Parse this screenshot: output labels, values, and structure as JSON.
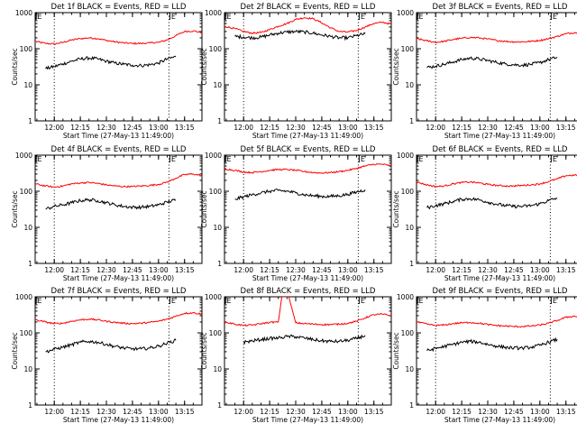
{
  "colors": {
    "events": "#000000",
    "lld": "#ff0000",
    "axis": "#000000"
  },
  "shared": {
    "xlabel": "Start Time (27-May-13 11:49:00)",
    "ylabel": "Counts/sec",
    "x_tick_labels": [
      "12:00",
      "12:15",
      "12:30",
      "12:45",
      "13:00",
      "13:15"
    ],
    "y_tick_labels": [
      "1",
      "10",
      "100",
      "1000"
    ],
    "flag_label": "E"
  },
  "chart_data": [
    {
      "type": "line",
      "title": "Det 1f BLACK = Events, RED = LLD",
      "yscale": "log",
      "ylim": [
        1,
        1000
      ],
      "xlim": [
        "11:49",
        "13:25"
      ],
      "dotted_lines_at": [
        "12:00",
        "13:06"
      ],
      "flag_at": [
        "11:49",
        "13:06"
      ],
      "x": [
        "11:49",
        "11:55",
        "12:00",
        "12:05",
        "12:10",
        "12:15",
        "12:20",
        "12:25",
        "12:30",
        "12:35",
        "12:40",
        "12:45",
        "12:50",
        "12:55",
        "13:00",
        "13:05",
        "13:10",
        "13:15",
        "13:20",
        "13:25"
      ],
      "series": [
        {
          "name": "LLD",
          "values": [
            160,
            140,
            135,
            150,
            175,
            190,
            200,
            190,
            170,
            155,
            145,
            140,
            140,
            145,
            150,
            175,
            230,
            300,
            310,
            280
          ]
        },
        {
          "name": "Events",
          "values": [
            null,
            28,
            32,
            38,
            45,
            52,
            55,
            52,
            45,
            40,
            37,
            35,
            34,
            36,
            40,
            52,
            60,
            null,
            null,
            null
          ]
        }
      ]
    },
    {
      "type": "line",
      "title": "Det 2f BLACK = Events, RED = LLD",
      "yscale": "log",
      "ylim": [
        1,
        1000
      ],
      "xlim": [
        "11:49",
        "13:25"
      ],
      "dotted_lines_at": [
        "12:00",
        "13:06"
      ],
      "flag_at": [
        "11:49",
        "13:06"
      ],
      "x": [
        "11:49",
        "11:55",
        "12:00",
        "12:05",
        "12:10",
        "12:15",
        "12:20",
        "12:25",
        "12:30",
        "12:35",
        "12:40",
        "12:45",
        "12:50",
        "12:55",
        "13:00",
        "13:05",
        "13:10",
        "13:15",
        "13:20",
        "13:25"
      ],
      "series": [
        {
          "name": "LLD",
          "values": [
            420,
            360,
            300,
            270,
            280,
            340,
            420,
            500,
            650,
            720,
            680,
            520,
            380,
            300,
            290,
            320,
            400,
            500,
            540,
            480
          ]
        },
        {
          "name": "Events",
          "values": [
            null,
            220,
            210,
            200,
            210,
            240,
            270,
            290,
            300,
            290,
            270,
            240,
            220,
            200,
            200,
            230,
            260,
            null,
            null,
            null
          ]
        }
      ]
    },
    {
      "type": "line",
      "title": "Det 3f BLACK = Events, RED = LLD",
      "yscale": "log",
      "ylim": [
        1,
        1000
      ],
      "xlim": [
        "11:49",
        "13:25"
      ],
      "dotted_lines_at": [
        "12:00",
        "13:06"
      ],
      "flag_at": [
        "11:49",
        "13:06"
      ],
      "x": [
        "11:49",
        "11:55",
        "12:00",
        "12:05",
        "12:10",
        "12:15",
        "12:20",
        "12:25",
        "12:30",
        "12:35",
        "12:40",
        "12:45",
        "12:50",
        "12:55",
        "13:00",
        "13:05",
        "13:10",
        "13:15",
        "13:20",
        "13:25"
      ],
      "series": [
        {
          "name": "LLD",
          "values": [
            190,
            165,
            150,
            160,
            180,
            195,
            205,
            200,
            185,
            170,
            160,
            155,
            155,
            160,
            170,
            190,
            220,
            260,
            280,
            260
          ]
        },
        {
          "name": "Events",
          "values": [
            null,
            30,
            33,
            37,
            43,
            50,
            55,
            52,
            47,
            42,
            38,
            36,
            35,
            37,
            41,
            50,
            58,
            null,
            null,
            null
          ]
        }
      ]
    },
    {
      "type": "line",
      "title": "Det 4f BLACK = Events, RED = LLD",
      "yscale": "log",
      "ylim": [
        1,
        1000
      ],
      "xlim": [
        "11:49",
        "13:25"
      ],
      "dotted_lines_at": [
        "12:00",
        "13:06"
      ],
      "flag_at": [
        "11:49",
        "13:06"
      ],
      "x": [
        "11:49",
        "11:55",
        "12:00",
        "12:05",
        "12:10",
        "12:15",
        "12:20",
        "12:25",
        "12:30",
        "12:35",
        "12:40",
        "12:45",
        "12:50",
        "12:55",
        "13:00",
        "13:05",
        "13:10",
        "13:15",
        "13:20",
        "13:25"
      ],
      "series": [
        {
          "name": "LLD",
          "values": [
            160,
            140,
            130,
            140,
            160,
            170,
            175,
            165,
            150,
            140,
            135,
            135,
            140,
            145,
            155,
            180,
            230,
            290,
            300,
            270
          ]
        },
        {
          "name": "Events",
          "values": [
            null,
            32,
            38,
            42,
            48,
            55,
            58,
            55,
            48,
            42,
            38,
            36,
            36,
            38,
            42,
            50,
            58,
            null,
            null,
            null
          ]
        }
      ]
    },
    {
      "type": "line",
      "title": "Det 5f BLACK = Events, RED = LLD",
      "yscale": "log",
      "ylim": [
        1,
        1000
      ],
      "xlim": [
        "11:49",
        "13:25"
      ],
      "dotted_lines_at": [
        "12:00",
        "13:06"
      ],
      "flag_at": [
        "11:49",
        "13:06"
      ],
      "x": [
        "11:49",
        "11:55",
        "12:00",
        "12:05",
        "12:10",
        "12:15",
        "12:20",
        "12:25",
        "12:30",
        "12:35",
        "12:40",
        "12:45",
        "12:50",
        "12:55",
        "13:00",
        "13:05",
        "13:10",
        "13:15",
        "13:20",
        "13:25"
      ],
      "series": [
        {
          "name": "LLD",
          "values": [
            420,
            380,
            340,
            330,
            350,
            380,
            400,
            400,
            380,
            350,
            330,
            320,
            330,
            350,
            380,
            430,
            500,
            560,
            560,
            500
          ]
        },
        {
          "name": "Events",
          "values": [
            null,
            60,
            70,
            80,
            90,
            100,
            105,
            100,
            90,
            80,
            75,
            72,
            72,
            75,
            82,
            95,
            110,
            null,
            null,
            null
          ]
        }
      ]
    },
    {
      "type": "line",
      "title": "Det 6f BLACK = Events, RED = LLD",
      "yscale": "log",
      "ylim": [
        1,
        1000
      ],
      "xlim": [
        "11:49",
        "13:25"
      ],
      "dotted_lines_at": [
        "12:00",
        "13:06"
      ],
      "flag_at": [
        "11:49",
        "13:06"
      ],
      "x": [
        "11:49",
        "11:55",
        "12:00",
        "12:05",
        "12:10",
        "12:15",
        "12:20",
        "12:25",
        "12:30",
        "12:35",
        "12:40",
        "12:45",
        "12:50",
        "12:55",
        "13:00",
        "13:05",
        "13:10",
        "13:15",
        "13:20",
        "13:25"
      ],
      "series": [
        {
          "name": "LLD",
          "values": [
            180,
            150,
            135,
            140,
            160,
            175,
            180,
            170,
            155,
            145,
            140,
            140,
            145,
            150,
            160,
            185,
            220,
            270,
            280,
            260
          ]
        },
        {
          "name": "Events",
          "values": [
            null,
            35,
            40,
            45,
            52,
            60,
            62,
            58,
            50,
            44,
            40,
            38,
            38,
            40,
            45,
            55,
            65,
            null,
            null,
            null
          ]
        }
      ]
    },
    {
      "type": "line",
      "title": "Det 7f BLACK = Events, RED = LLD",
      "yscale": "log",
      "ylim": [
        1,
        1000
      ],
      "xlim": [
        "11:49",
        "13:25"
      ],
      "dotted_lines_at": [
        "12:00",
        "13:06"
      ],
      "flag_at": [
        "11:49",
        "13:06"
      ],
      "x": [
        "11:49",
        "11:55",
        "12:00",
        "12:05",
        "12:10",
        "12:15",
        "12:20",
        "12:25",
        "12:30",
        "12:35",
        "12:40",
        "12:45",
        "12:50",
        "12:55",
        "13:00",
        "13:05",
        "13:10",
        "13:15",
        "13:20",
        "13:25"
      ],
      "series": [
        {
          "name": "LLD",
          "values": [
            230,
            200,
            180,
            185,
            210,
            230,
            240,
            230,
            210,
            195,
            185,
            180,
            185,
            195,
            210,
            240,
            290,
            350,
            360,
            330
          ]
        },
        {
          "name": "Events",
          "values": [
            null,
            30,
            35,
            40,
            47,
            55,
            58,
            55,
            48,
            42,
            38,
            36,
            36,
            38,
            43,
            52,
            62,
            null,
            null,
            null
          ]
        }
      ]
    },
    {
      "type": "line",
      "title": "Det 8f BLACK = Events, RED = LLD",
      "yscale": "log",
      "ylim": [
        1,
        1000
      ],
      "xlim": [
        "11:49",
        "13:25"
      ],
      "dotted_lines_at": [
        "12:00",
        "13:06"
      ],
      "flag_at": [
        "11:49",
        "13:06"
      ],
      "x": [
        "11:49",
        "11:55",
        "12:00",
        "12:05",
        "12:10",
        "12:15",
        "12:20",
        "12:22",
        "12:26",
        "12:30",
        "12:35",
        "12:40",
        "12:45",
        "12:50",
        "12:55",
        "13:00",
        "13:05",
        "13:10",
        "13:15",
        "13:20",
        "13:25"
      ],
      "series": [
        {
          "name": "LLD",
          "values": [
            200,
            175,
            160,
            165,
            180,
            195,
            200,
            1000,
            1000,
            190,
            180,
            175,
            170,
            170,
            175,
            185,
            210,
            260,
            320,
            330,
            300
          ]
        },
        {
          "name": "Events",
          "values": [
            null,
            null,
            55,
            60,
            65,
            70,
            72,
            75,
            80,
            78,
            72,
            65,
            60,
            58,
            58,
            62,
            70,
            85,
            null,
            null,
            null
          ]
        }
      ]
    },
    {
      "type": "line",
      "title": "Det 9f BLACK = Events, RED = LLD",
      "yscale": "log",
      "ylim": [
        1,
        1000
      ],
      "xlim": [
        "11:49",
        "13:25"
      ],
      "dotted_lines_at": [
        "12:00",
        "13:06"
      ],
      "flag_at": [
        "11:49",
        "13:06"
      ],
      "x": [
        "11:49",
        "11:55",
        "12:00",
        "12:05",
        "12:10",
        "12:15",
        "12:20",
        "12:25",
        "12:30",
        "12:35",
        "12:40",
        "12:45",
        "12:50",
        "12:55",
        "13:00",
        "13:05",
        "13:10",
        "13:15",
        "13:20",
        "13:25"
      ],
      "series": [
        {
          "name": "LLD",
          "values": [
            200,
            175,
            160,
            165,
            180,
            190,
            195,
            185,
            170,
            160,
            155,
            150,
            150,
            155,
            165,
            185,
            220,
            270,
            290,
            270
          ]
        },
        {
          "name": "Events",
          "values": [
            null,
            32,
            37,
            42,
            48,
            55,
            58,
            55,
            48,
            43,
            40,
            38,
            38,
            40,
            45,
            55,
            66,
            null,
            null,
            null
          ]
        }
      ]
    }
  ]
}
